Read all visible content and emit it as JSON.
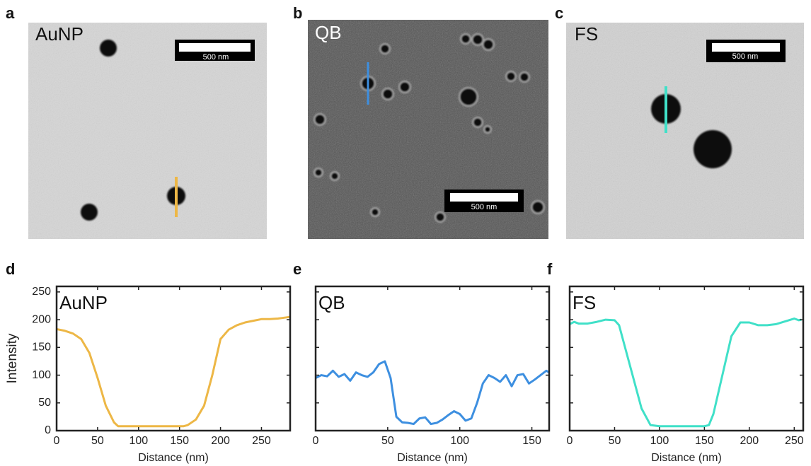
{
  "images": [
    {
      "panel": "a",
      "label": "AuNP",
      "scale_bar": "500 nm"
    },
    {
      "panel": "b",
      "label": "QB",
      "scale_bar": "500 nm"
    },
    {
      "panel": "c",
      "label": "FS",
      "scale_bar": "500 nm"
    }
  ],
  "chart_data": [
    {
      "type": "line",
      "panel": "d",
      "annotation": "AuNP",
      "xlabel": "Distance (nm)",
      "ylabel": "Intensity",
      "x": [
        0,
        10,
        20,
        30,
        40,
        50,
        60,
        70,
        75,
        80,
        100,
        120,
        140,
        155,
        160,
        170,
        180,
        190,
        200,
        210,
        220,
        230,
        240,
        250,
        260,
        270,
        280,
        285
      ],
      "series": [
        {
          "name": "AuNP",
          "color": "#edb746",
          "values": [
            183,
            180,
            175,
            165,
            140,
            95,
            45,
            15,
            8,
            8,
            8,
            8,
            8,
            8,
            10,
            20,
            45,
            100,
            165,
            182,
            190,
            195,
            198,
            201,
            201,
            202,
            204,
            205
          ]
        }
      ],
      "xlim": [
        0,
        285
      ],
      "xticks": [
        0,
        50,
        100,
        150,
        200,
        250
      ],
      "ylim": [
        0,
        260
      ],
      "yticks": [
        0,
        50,
        100,
        150,
        200,
        250
      ]
    },
    {
      "type": "line",
      "panel": "e",
      "annotation": "QB",
      "xlabel": "Distance (nm)",
      "x": [
        0,
        4,
        8,
        12,
        16,
        20,
        24,
        28,
        32,
        36,
        40,
        44,
        48,
        52,
        56,
        60,
        64,
        68,
        72,
        76,
        80,
        84,
        88,
        92,
        96,
        100,
        104,
        108,
        112,
        116,
        120,
        124,
        128,
        132,
        136,
        140,
        144,
        148,
        152,
        156,
        160,
        162
      ],
      "series": [
        {
          "name": "QB",
          "color": "#3d8fe0",
          "values": [
            95,
            100,
            98,
            108,
            97,
            102,
            90,
            105,
            100,
            97,
            105,
            120,
            125,
            95,
            25,
            15,
            14,
            12,
            22,
            24,
            12,
            14,
            20,
            28,
            35,
            30,
            18,
            22,
            50,
            85,
            100,
            95,
            88,
            100,
            80,
            100,
            102,
            85,
            92,
            100,
            108,
            105
          ]
        }
      ],
      "xlim": [
        0,
        162
      ],
      "xticks": [
        0,
        50,
        100,
        150
      ],
      "ylim": [
        0,
        260
      ]
    },
    {
      "type": "line",
      "panel": "f",
      "annotation": "FS",
      "xlabel": "Distance (nm)",
      "x": [
        0,
        5,
        10,
        20,
        30,
        40,
        50,
        55,
        60,
        70,
        80,
        90,
        100,
        120,
        140,
        150,
        155,
        160,
        170,
        180,
        190,
        200,
        210,
        220,
        230,
        240,
        250,
        255,
        258
      ],
      "series": [
        {
          "name": "FS",
          "color": "#40e0c8",
          "values": [
            192,
            196,
            193,
            193,
            196,
            200,
            199,
            190,
            160,
            100,
            40,
            10,
            8,
            8,
            8,
            8,
            10,
            30,
            100,
            170,
            195,
            195,
            190,
            190,
            192,
            197,
            202,
            199,
            200
          ]
        }
      ],
      "xlim": [
        0,
        260
      ],
      "xticks": [
        0,
        50,
        100,
        150,
        200,
        250
      ],
      "ylim": [
        0,
        260
      ]
    }
  ]
}
